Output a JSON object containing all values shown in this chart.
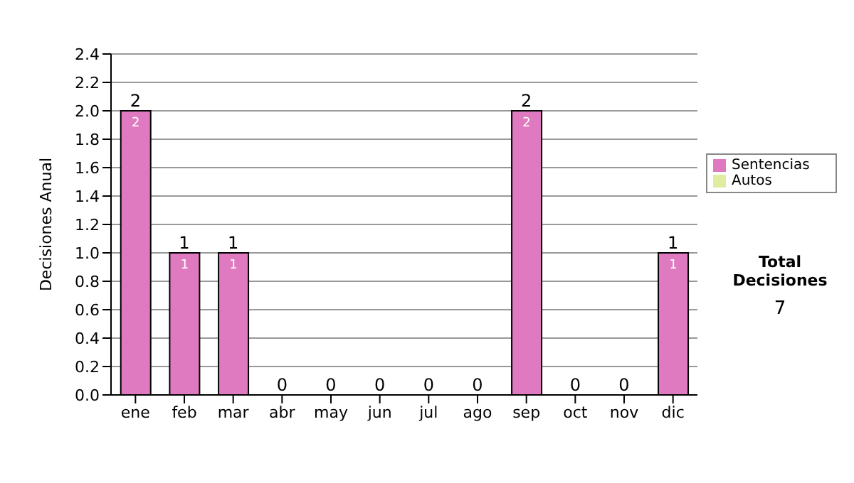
{
  "chart_data": {
    "type": "bar",
    "stacked": true,
    "ylabel": "Decisiones Anual",
    "categories": [
      "ene",
      "feb",
      "mar",
      "abr",
      "may",
      "jun",
      "jul",
      "ago",
      "sep",
      "oct",
      "nov",
      "dic"
    ],
    "series": [
      {
        "name": "Sentencias",
        "color": "#e07ac0",
        "values": [
          2,
          1,
          1,
          0,
          0,
          0,
          0,
          0,
          2,
          0,
          0,
          1
        ],
        "value_labels": [
          "2",
          "1",
          "1",
          null,
          null,
          null,
          null,
          null,
          "2",
          null,
          null,
          "1"
        ]
      },
      {
        "name": "Autos",
        "color": "#e0eca0",
        "values": [
          0,
          0,
          0,
          0,
          0,
          0,
          0,
          0,
          0,
          0,
          0,
          0
        ]
      }
    ],
    "totals": [
      "2",
      "1",
      "1",
      "0",
      "0",
      "0",
      "0",
      "0",
      "2",
      "0",
      "0",
      "1"
    ],
    "ylim": [
      0,
      2.4
    ],
    "yticks": [
      {
        "value": 0,
        "label": "0.0"
      },
      {
        "value": 0.2,
        "label": "0.2"
      },
      {
        "value": 0.4,
        "label": "0.4"
      },
      {
        "value": 0.6,
        "label": "0.6"
      },
      {
        "value": 0.8,
        "label": "0.8"
      },
      {
        "value": 1,
        "label": "1.0"
      },
      {
        "value": 1.2,
        "label": "1.2"
      },
      {
        "value": 1.4,
        "label": "1.4"
      },
      {
        "value": 1.6,
        "label": "1.6"
      },
      {
        "value": 1.8,
        "label": "1.8"
      },
      {
        "value": 2,
        "label": "2.0"
      },
      {
        "value": 2.2,
        "label": "2.2"
      },
      {
        "value": 2.4,
        "label": "2.4"
      }
    ],
    "grid": "y",
    "legend": "right",
    "annotations": [
      "Total Decisiones",
      "7"
    ]
  }
}
